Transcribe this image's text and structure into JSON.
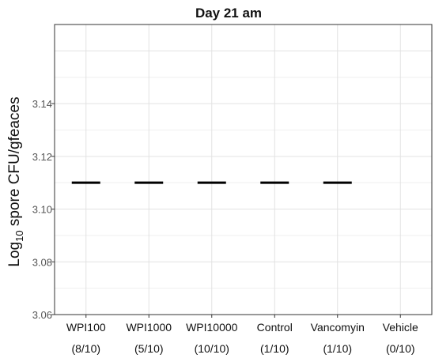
{
  "chart_data": {
    "type": "scatter",
    "title": "Day 21 am",
    "ylabel": {
      "main": "Log",
      "subscript": "10",
      "rest": " spore CFU/gfeaces"
    },
    "xlabel": "",
    "categories": [
      "WPI100",
      "WPI1000",
      "WPI10000",
      "Control",
      "Vancomyin",
      "Vehicle"
    ],
    "counts": [
      "(8/10)",
      "(5/10)",
      "(10/10)",
      "(1/10)",
      "(1/10)",
      "(0/10)"
    ],
    "values": [
      3.11,
      3.11,
      3.11,
      3.11,
      3.11,
      null
    ],
    "ylim": [
      3.06,
      3.17
    ],
    "yticks": [
      3.06,
      3.08,
      3.1,
      3.12,
      3.14
    ],
    "ytick_labels": [
      "3.06",
      "3.08",
      "3.10",
      "3.12",
      "3.14"
    ],
    "grid": true,
    "marker_color": "#000000"
  }
}
